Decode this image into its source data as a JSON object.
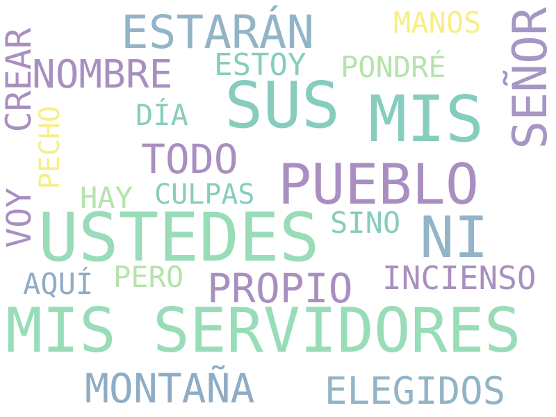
{
  "colors": {
    "teal": "#87cdbd",
    "mint": "#99dcb8",
    "purple": "#a98fc0",
    "lavender": "#a596c4",
    "blue": "#92b4c6",
    "steel": "#8eacc6",
    "yellow": "#f7ef86",
    "light_green": "#b5e3ab",
    "background": "#ffffff"
  },
  "words": {
    "mis_servidores": "MIS SERVIDORES",
    "ustedes": "USTEDES",
    "sus": "SUS",
    "mis": "MIS",
    "pueblo": "PUEBLO",
    "ni": "NI",
    "estaran": "ESTARÁN",
    "senor": "SEÑOR",
    "nombre": "NOMBRE",
    "todo": "TODO",
    "propio": "PROPIO",
    "montana": "MONTAÑA",
    "elegidos": "ELEGIDOS",
    "crear": "CREAR",
    "voy": "VOY",
    "incienso": "INCIENSO",
    "culpas": "CULPAS",
    "estoy": "ESTOY",
    "pondre": "PONDRÉ",
    "manos": "MANOS",
    "dia": "DÍA",
    "hay": "HAY",
    "sino": "SINO",
    "aqui": "AQUÍ",
    "pero": "PERO",
    "pecho": "PECHO"
  }
}
